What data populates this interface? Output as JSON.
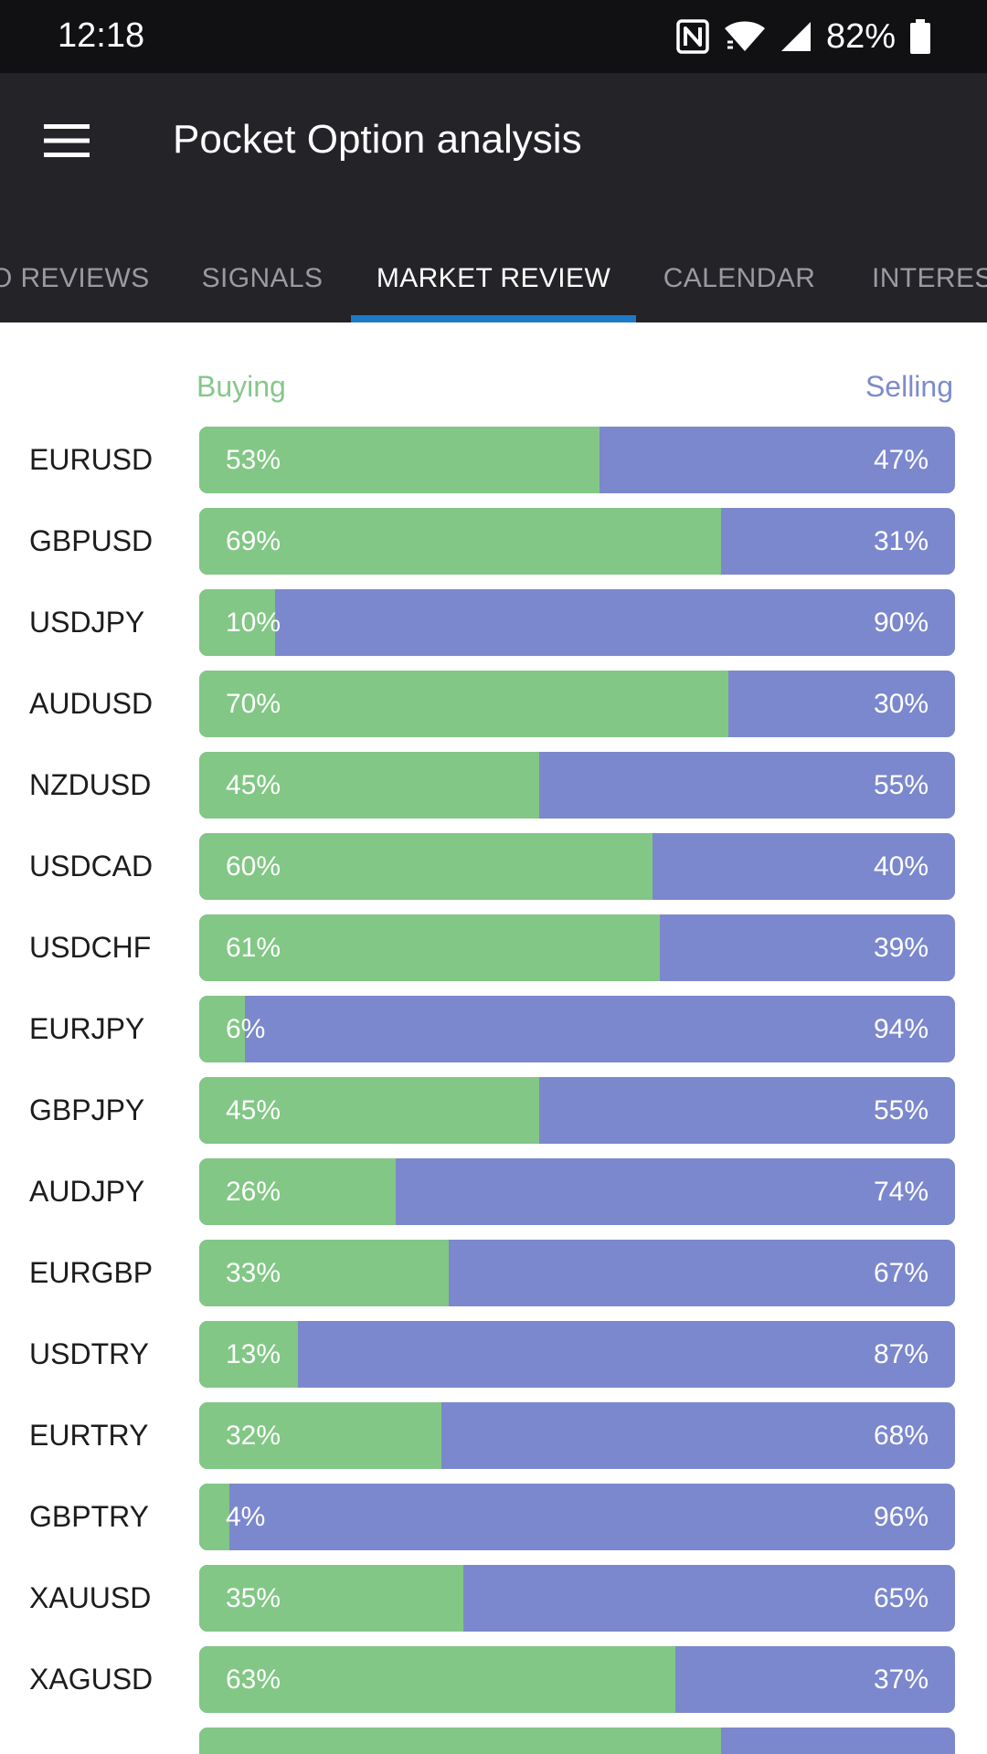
{
  "status_bar": {
    "time": "12:18",
    "battery": "82%",
    "icons": [
      "nfc-icon",
      "wifi-icon",
      "signal-icon",
      "battery-icon"
    ]
  },
  "app_bar": {
    "title": "Pocket Option analysis",
    "menu_icon": "hamburger-menu-icon"
  },
  "tabs": [
    {
      "label": "O REVIEWS",
      "active": false
    },
    {
      "label": "SIGNALS",
      "active": false
    },
    {
      "label": "MARKET REVIEW",
      "active": true
    },
    {
      "label": "CALENDAR",
      "active": false
    },
    {
      "label": "INTERES",
      "active": false
    }
  ],
  "legend": {
    "buying": "Buying",
    "selling": "Selling"
  },
  "colors": {
    "buying": "#82c785",
    "selling": "#7c88cd",
    "accent": "#1e7ac6"
  },
  "pairs": [
    {
      "name": "EURUSD",
      "buy": 53,
      "buy_label": "53%",
      "sell_label": "47%"
    },
    {
      "name": "GBPUSD",
      "buy": 69,
      "buy_label": "69%",
      "sell_label": "31%"
    },
    {
      "name": "USDJPY",
      "buy": 10,
      "buy_label": "10%",
      "sell_label": "90%"
    },
    {
      "name": "AUDUSD",
      "buy": 70,
      "buy_label": "70%",
      "sell_label": "30%"
    },
    {
      "name": "NZDUSD",
      "buy": 45,
      "buy_label": "45%",
      "sell_label": "55%"
    },
    {
      "name": "USDCAD",
      "buy": 60,
      "buy_label": "60%",
      "sell_label": "40%"
    },
    {
      "name": "USDCHF",
      "buy": 61,
      "buy_label": "61%",
      "sell_label": "39%"
    },
    {
      "name": "EURJPY",
      "buy": 6,
      "buy_label": "6%",
      "sell_label": "94%"
    },
    {
      "name": "GBPJPY",
      "buy": 45,
      "buy_label": "45%",
      "sell_label": "55%"
    },
    {
      "name": "AUDJPY",
      "buy": 26,
      "buy_label": "26%",
      "sell_label": "74%"
    },
    {
      "name": "EURGBP",
      "buy": 33,
      "buy_label": "33%",
      "sell_label": "67%"
    },
    {
      "name": "USDTRY",
      "buy": 13,
      "buy_label": "13%",
      "sell_label": "87%"
    },
    {
      "name": "EURTRY",
      "buy": 32,
      "buy_label": "32%",
      "sell_label": "68%"
    },
    {
      "name": "GBPTRY",
      "buy": 4,
      "buy_label": "4%",
      "sell_label": "96%"
    },
    {
      "name": "XAUUSD",
      "buy": 35,
      "buy_label": "35%",
      "sell_label": "65%"
    },
    {
      "name": "XAGUSD",
      "buy": 63,
      "buy_label": "63%",
      "sell_label": "37%"
    },
    {
      "name": "",
      "buy": 69,
      "buy_label": "",
      "sell_label": ""
    }
  ]
}
